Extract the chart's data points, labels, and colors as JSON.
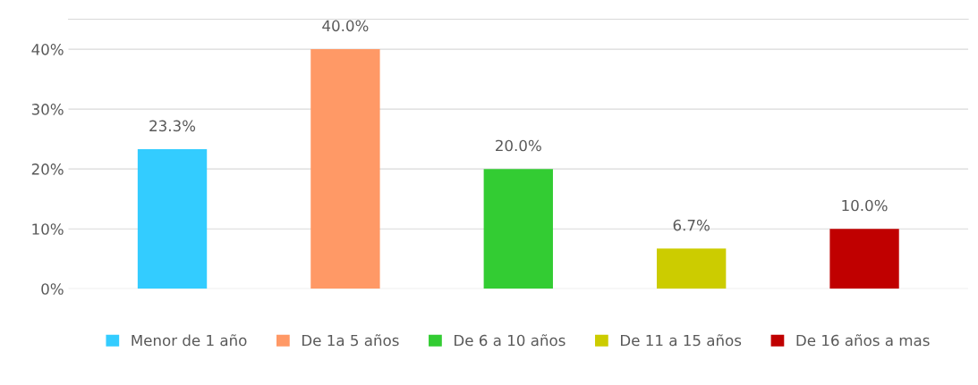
{
  "chart_data": {
    "type": "bar",
    "categories": [
      null,
      null,
      null,
      null,
      null
    ],
    "series": [
      {
        "name": "Menor de 1 año",
        "color": "#33ccff",
        "values": [
          23.3,
          null,
          null,
          null,
          null
        ],
        "value_labels": [
          "23.3%",
          null,
          null,
          null,
          null
        ]
      },
      {
        "name": "De 1a 5 años",
        "color": "#ff9966",
        "values": [
          null,
          40.0,
          null,
          null,
          null
        ],
        "value_labels": [
          null,
          "40.0%",
          null,
          null,
          null
        ]
      },
      {
        "name": "De 6 a 10 años",
        "color": "#33cc33",
        "values": [
          null,
          null,
          20.0,
          null,
          null
        ],
        "value_labels": [
          null,
          null,
          "20.0%",
          null,
          null
        ]
      },
      {
        "name": "De 11 a 15 años",
        "color": "#cccc00",
        "values": [
          null,
          null,
          null,
          6.7,
          null
        ],
        "value_labels": [
          null,
          null,
          null,
          "6.7%",
          null
        ]
      },
      {
        "name": "De 16 años a mas",
        "color": "#c00000",
        "values": [
          null,
          null,
          null,
          null,
          10.0
        ],
        "value_labels": [
          null,
          null,
          null,
          null,
          "10.0%"
        ]
      }
    ],
    "ylim": [
      0,
      45
    ],
    "yticks": [
      {
        "value": 0,
        "label": "0%"
      },
      {
        "value": 10,
        "label": "10%"
      },
      {
        "value": 20,
        "label": "20%"
      },
      {
        "value": 30,
        "label": "30%"
      },
      {
        "value": 40,
        "label": "40%"
      }
    ],
    "grid": "y",
    "legend": "bottom"
  }
}
